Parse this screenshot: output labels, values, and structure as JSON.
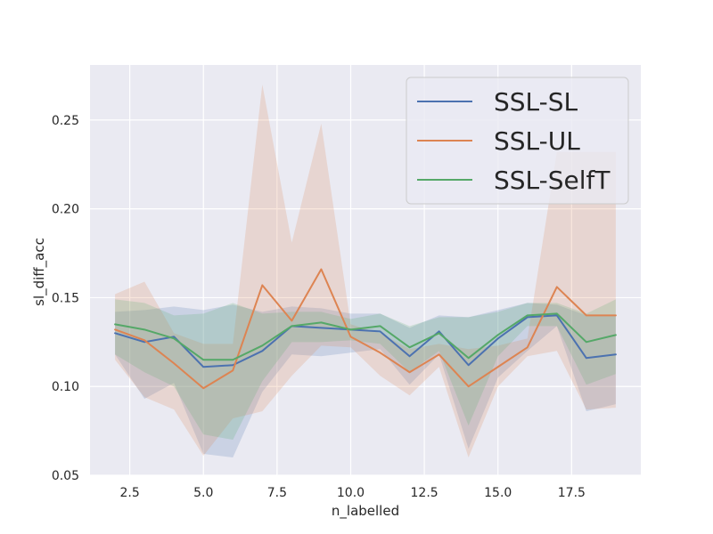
{
  "chart_data": {
    "type": "line",
    "xlabel": "n_labelled",
    "ylabel": "sl_diff_acc",
    "xlim": [
      1.15,
      19.85
    ],
    "ylim": [
      0.05,
      0.281
    ],
    "xticks": [
      2.5,
      5.0,
      7.5,
      10.0,
      12.5,
      15.0,
      17.5
    ],
    "xtick_labels": [
      "2.5",
      "5.0",
      "7.5",
      "10.0",
      "12.5",
      "15.0",
      "17.5"
    ],
    "yticks": [
      0.05,
      0.1,
      0.15,
      0.2,
      0.25
    ],
    "ytick_labels": [
      "0.05",
      "0.10",
      "0.15",
      "0.20",
      "0.25"
    ],
    "grid": true,
    "background": "#eaeaf2",
    "legend_position": "top-right",
    "x": [
      2,
      3,
      4,
      5,
      6,
      7,
      8,
      9,
      10,
      11,
      12,
      13,
      14,
      15,
      16,
      17,
      18,
      19
    ],
    "series": [
      {
        "name": "SSL-SL",
        "color": "#4c72b0",
        "values": [
          0.13,
          0.125,
          0.128,
          0.111,
          0.112,
          0.12,
          0.134,
          0.133,
          0.132,
          0.131,
          0.117,
          0.131,
          0.112,
          0.127,
          0.139,
          0.14,
          0.116,
          0.118
        ],
        "lower": [
          0.118,
          0.093,
          0.102,
          0.062,
          0.06,
          0.097,
          0.118,
          0.117,
          0.119,
          0.121,
          0.101,
          0.118,
          0.065,
          0.105,
          0.12,
          0.134,
          0.086,
          0.09
        ],
        "upper": [
          0.142,
          0.143,
          0.145,
          0.143,
          0.146,
          0.142,
          0.145,
          0.144,
          0.141,
          0.141,
          0.133,
          0.14,
          0.139,
          0.143,
          0.147,
          0.146,
          0.14,
          0.14
        ]
      },
      {
        "name": "SSL-UL",
        "color": "#dd8452",
        "values": [
          0.132,
          0.126,
          0.113,
          0.099,
          0.109,
          0.157,
          0.137,
          0.166,
          0.128,
          0.119,
          0.108,
          0.118,
          0.1,
          0.111,
          0.122,
          0.156,
          0.14,
          0.14
        ],
        "lower": [
          0.115,
          0.094,
          0.087,
          0.061,
          0.082,
          0.086,
          0.106,
          0.123,
          0.122,
          0.106,
          0.095,
          0.111,
          0.06,
          0.1,
          0.117,
          0.12,
          0.087,
          0.088
        ],
        "upper": [
          0.152,
          0.159,
          0.13,
          0.124,
          0.124,
          0.27,
          0.181,
          0.248,
          0.135,
          0.13,
          0.121,
          0.124,
          0.121,
          0.123,
          0.127,
          0.232,
          0.232,
          0.232
        ]
      },
      {
        "name": "SSL-SelfT",
        "color": "#55a868",
        "values": [
          0.135,
          0.132,
          0.127,
          0.115,
          0.115,
          0.123,
          0.134,
          0.136,
          0.132,
          0.134,
          0.122,
          0.13,
          0.116,
          0.129,
          0.14,
          0.141,
          0.125,
          0.129
        ],
        "lower": [
          0.118,
          0.108,
          0.1,
          0.073,
          0.07,
          0.103,
          0.125,
          0.125,
          0.126,
          0.124,
          0.108,
          0.12,
          0.078,
          0.117,
          0.134,
          0.134,
          0.101,
          0.107
        ],
        "upper": [
          0.149,
          0.147,
          0.14,
          0.141,
          0.147,
          0.141,
          0.142,
          0.142,
          0.138,
          0.141,
          0.134,
          0.139,
          0.139,
          0.142,
          0.147,
          0.147,
          0.141,
          0.149
        ]
      }
    ]
  }
}
